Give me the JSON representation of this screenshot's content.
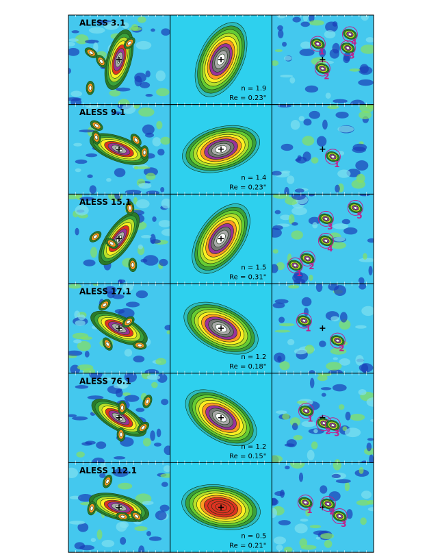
{
  "rows": [
    {
      "label": "ALESS 3.1",
      "n": "n = 1.9",
      "re": "Re = 0.23\"",
      "components": [
        "1",
        "2",
        "3",
        "4"
      ]
    },
    {
      "label": "ALESS 9.1",
      "n": "n = 1.4",
      "re": "Re = 0.23\"",
      "components": [
        "1"
      ]
    },
    {
      "label": "ALESS 15.1",
      "n": "n = 1.5",
      "re": "Re = 0.31\"",
      "components": [
        "1",
        "2",
        "3",
        "4",
        "5"
      ]
    },
    {
      "label": "ALESS 17.1",
      "n": "n = 1.2",
      "re": "Re = 0.18\"",
      "components": [
        "1",
        "2"
      ]
    },
    {
      "label": "ALESS 76.1",
      "n": "n = 1.2",
      "re": "Re = 0.15\"",
      "components": [
        "1",
        "2",
        "3"
      ]
    },
    {
      "label": "ALESS 112.1",
      "n": "n = 0.5",
      "re": "Re = 0.21\"",
      "components": [
        "1",
        "2",
        "3"
      ]
    }
  ]
}
